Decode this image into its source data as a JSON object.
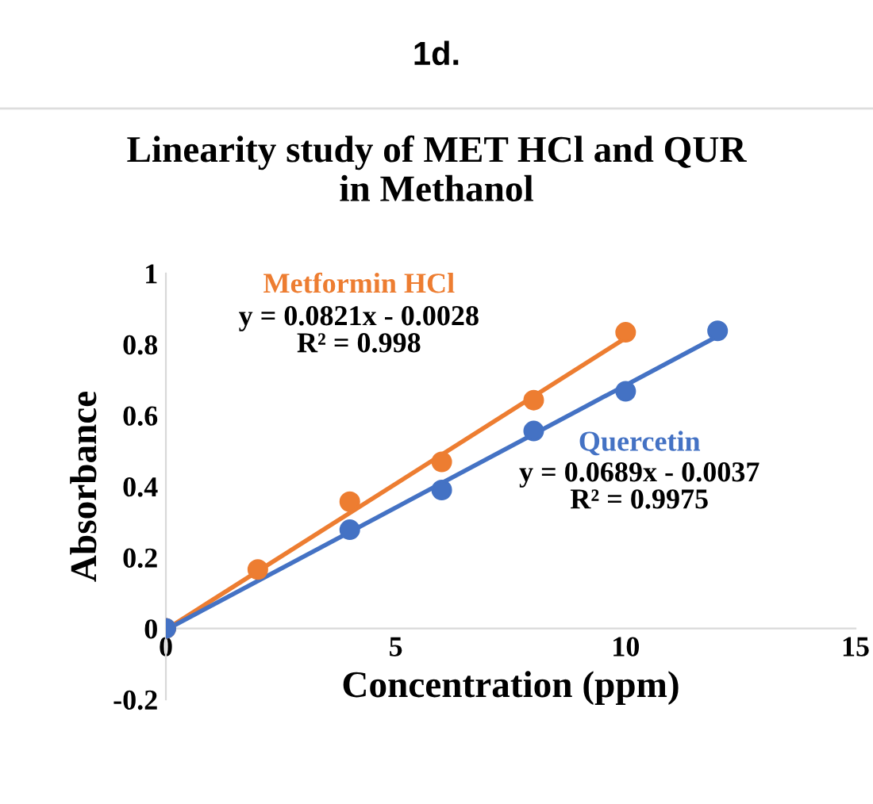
{
  "chart_data": {
    "type": "scatter",
    "title": "Linearity study of MET HCl and QUR\nin Methanol",
    "subtitle": "1d.",
    "xlabel": "Concentration (ppm)",
    "ylabel": "Absorbance",
    "xlim": [
      0,
      15
    ],
    "xticks": [
      0,
      5,
      10,
      15
    ],
    "ylim": [
      -0.2,
      1
    ],
    "yticks": [
      -0.2,
      0,
      0.2,
      0.4,
      0.6,
      0.8,
      1
    ],
    "grid": false,
    "legend": false,
    "series": [
      {
        "name": "Metformin HCl",
        "marker": "circle",
        "color": "#ed7d31",
        "x": [
          0,
          2,
          4,
          6,
          8,
          10
        ],
        "values": [
          0,
          0.166,
          0.357,
          0.469,
          0.643,
          0.834
        ]
      },
      {
        "name": "Quercetin",
        "marker": "circle",
        "color": "#4472c4",
        "x": [
          0,
          4,
          6,
          8,
          10,
          12
        ],
        "values": [
          0,
          0.278,
          0.39,
          0.556,
          0.668,
          0.838
        ]
      },
      {
        "type": "line",
        "color": "#ed7d31",
        "x": [
          0,
          10
        ],
        "values": [
          -0.003,
          0.818
        ]
      },
      {
        "type": "line",
        "color": "#4472c4",
        "x": [
          0,
          12
        ],
        "values": [
          -0.004,
          0.823
        ]
      }
    ],
    "annotations": [
      "y = 0.0821x - 0.0028\nR² = 0.998",
      "y = 0.0689x - 0.0037\nR² = 0.9975"
    ]
  }
}
